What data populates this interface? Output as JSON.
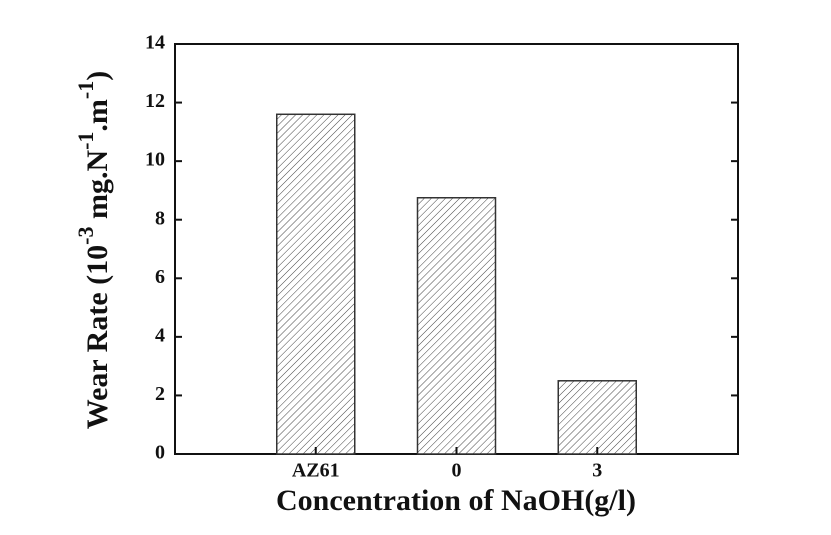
{
  "chart_data": {
    "type": "bar",
    "y_label": [
      "Wear Rate (10",
      "-3",
      " mg.N",
      "-1",
      ".m",
      "-1",
      ")"
    ],
    "x_label": "Concentration of NaOH(g/l)",
    "categories": [
      "AZ61",
      "0",
      "3"
    ],
    "values": [
      11.6,
      8.75,
      2.5
    ],
    "color": "#333333",
    "ylim": [
      0,
      14
    ],
    "yticks": [
      0,
      2,
      4,
      6,
      8,
      10,
      12,
      14
    ],
    "grid": false
  }
}
